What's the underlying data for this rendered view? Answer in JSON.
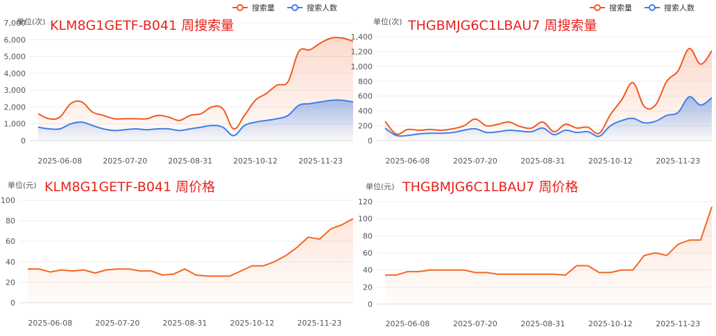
{
  "theme": {
    "search_color": "#f2571b",
    "people_color": "#3d7fe8",
    "price_color": "#f4661f",
    "title_color": "#e8211b",
    "axis_text_color": "#555555",
    "grid_color": "#eeeeee"
  },
  "chart_data": [
    {
      "type": "area",
      "title": "KLM8G1GETF-B041 周搜索量",
      "ylabel": "单位(次)",
      "ylim": [
        0,
        7000
      ],
      "yticks": [
        0,
        1000,
        2000,
        3000,
        4000,
        5000,
        6000,
        7000
      ],
      "ytick_labels": [
        "0",
        "1,000",
        "2,000",
        "3,000",
        "4,000",
        "5,000",
        "6,000",
        "7,000"
      ],
      "x": [
        "2025-05-25",
        "2025-06-01",
        "2025-06-08",
        "2025-06-15",
        "2025-06-22",
        "2025-06-29",
        "2025-07-06",
        "2025-07-13",
        "2025-07-20",
        "2025-07-27",
        "2025-08-03",
        "2025-08-10",
        "2025-08-17",
        "2025-08-24",
        "2025-08-31",
        "2025-09-07",
        "2025-09-14",
        "2025-09-21",
        "2025-09-28",
        "2025-10-05",
        "2025-10-12",
        "2025-10-19",
        "2025-10-26",
        "2025-11-02",
        "2025-11-09",
        "2025-11-16",
        "2025-11-23",
        "2025-11-30",
        "2025-12-07",
        "2025-12-14"
      ],
      "xtick_labels": [
        "2025-06-08",
        "2025-07-20",
        "2025-08-31",
        "2025-10-12",
        "2025-11-23"
      ],
      "legend": [
        "搜索量",
        "搜索人数"
      ],
      "legend_position": "top-right",
      "series": [
        {
          "name": "搜索量",
          "values": [
            1600,
            1300,
            1400,
            2200,
            2300,
            1700,
            1500,
            1300,
            1300,
            1300,
            1300,
            1500,
            1400,
            1200,
            1500,
            1600,
            2000,
            1900,
            700,
            1500,
            2400,
            2800,
            3300,
            3500,
            5300,
            5400,
            5800,
            6100,
            6100,
            5900
          ]
        },
        {
          "name": "搜索人数",
          "values": [
            800,
            700,
            700,
            1000,
            1100,
            900,
            700,
            600,
            650,
            700,
            650,
            700,
            700,
            600,
            700,
            800,
            900,
            800,
            300,
            900,
            1100,
            1200,
            1300,
            1500,
            2100,
            2200,
            2300,
            2400,
            2400,
            2300
          ]
        }
      ]
    },
    {
      "type": "area",
      "title": "THGBMJG6C1LBAU7 周搜索量",
      "ylabel": "单位(次)",
      "ylim": [
        0,
        1400
      ],
      "yticks": [
        0,
        200,
        400,
        600,
        800,
        1000,
        1200,
        1400
      ],
      "ytick_labels": [
        "0",
        "200",
        "400",
        "600",
        "800",
        "1,000",
        "1,200",
        "1,400"
      ],
      "x": [
        "2025-05-25",
        "2025-06-01",
        "2025-06-08",
        "2025-06-15",
        "2025-06-22",
        "2025-06-29",
        "2025-07-06",
        "2025-07-13",
        "2025-07-20",
        "2025-07-27",
        "2025-08-03",
        "2025-08-10",
        "2025-08-17",
        "2025-08-24",
        "2025-08-31",
        "2025-09-07",
        "2025-09-14",
        "2025-09-21",
        "2025-09-28",
        "2025-10-05",
        "2025-10-12",
        "2025-10-19",
        "2025-10-26",
        "2025-11-02",
        "2025-11-09",
        "2025-11-16",
        "2025-11-23",
        "2025-11-30",
        "2025-12-07",
        "2025-12-14"
      ],
      "xtick_labels": [
        "2025-06-08",
        "2025-07-20",
        "2025-08-31",
        "2025-10-12",
        "2025-11-23"
      ],
      "legend": [
        "搜索量",
        "搜索人数"
      ],
      "legend_position": "top-right",
      "series": [
        {
          "name": "搜索量",
          "values": [
            260,
            90,
            150,
            140,
            150,
            140,
            160,
            200,
            290,
            200,
            220,
            250,
            190,
            170,
            250,
            120,
            220,
            170,
            180,
            100,
            350,
            550,
            780,
            460,
            480,
            800,
            940,
            1240,
            1030,
            1210
          ]
        },
        {
          "name": "搜索人数",
          "values": [
            170,
            70,
            70,
            90,
            100,
            100,
            110,
            140,
            160,
            110,
            120,
            140,
            130,
            120,
            170,
            80,
            140,
            110,
            120,
            60,
            200,
            270,
            300,
            240,
            260,
            340,
            380,
            590,
            480,
            580
          ]
        }
      ]
    },
    {
      "type": "area",
      "title": "KLM8G1GETF-B041 周价格",
      "ylabel": "单位(元)",
      "ylim": [
        0,
        100
      ],
      "yticks": [
        0,
        20,
        40,
        60,
        80,
        100
      ],
      "ytick_labels": [
        "0",
        "20",
        "40",
        "60",
        "80",
        "100"
      ],
      "x": [
        "2025-05-25",
        "2025-06-01",
        "2025-06-08",
        "2025-06-15",
        "2025-06-22",
        "2025-06-29",
        "2025-07-06",
        "2025-07-13",
        "2025-07-20",
        "2025-07-27",
        "2025-08-03",
        "2025-08-10",
        "2025-08-17",
        "2025-08-24",
        "2025-08-31",
        "2025-09-07",
        "2025-09-14",
        "2025-09-21",
        "2025-09-28",
        "2025-10-05",
        "2025-10-12",
        "2025-10-19",
        "2025-10-26",
        "2025-11-02",
        "2025-11-09",
        "2025-11-16",
        "2025-11-23",
        "2025-11-30",
        "2025-12-07",
        "2025-12-14"
      ],
      "xtick_labels": [
        "2025-06-08",
        "2025-07-20",
        "2025-08-31",
        "2025-10-12",
        "2025-11-23"
      ],
      "series": [
        {
          "name": "",
          "values": [
            33,
            33,
            30,
            32,
            31,
            32,
            29,
            32,
            33,
            33,
            31,
            31,
            27,
            28,
            33,
            27,
            26,
            26,
            26,
            31,
            36,
            36,
            40,
            46,
            54,
            64,
            62,
            72,
            76,
            82
          ]
        }
      ]
    },
    {
      "type": "area",
      "title": "THGBMJG6C1LBAU7 周价格",
      "ylabel": "单位(元)",
      "ylim": [
        0,
        120
      ],
      "yticks": [
        0,
        20,
        40,
        60,
        80,
        100,
        120
      ],
      "ytick_labels": [
        "0",
        "20",
        "40",
        "60",
        "80",
        "100",
        "120"
      ],
      "x": [
        "2025-05-25",
        "2025-06-01",
        "2025-06-08",
        "2025-06-15",
        "2025-06-22",
        "2025-06-29",
        "2025-07-06",
        "2025-07-13",
        "2025-07-20",
        "2025-07-27",
        "2025-08-03",
        "2025-08-10",
        "2025-08-17",
        "2025-08-24",
        "2025-08-31",
        "2025-09-07",
        "2025-09-14",
        "2025-09-21",
        "2025-09-28",
        "2025-10-05",
        "2025-10-12",
        "2025-10-19",
        "2025-10-26",
        "2025-11-02",
        "2025-11-09",
        "2025-11-16",
        "2025-11-23",
        "2025-11-30",
        "2025-12-07",
        "2025-12-14"
      ],
      "xtick_labels": [
        "2025-06-08",
        "2025-07-20",
        "2025-08-31",
        "2025-10-12",
        "2025-11-23"
      ],
      "series": [
        {
          "name": "",
          "values": [
            34,
            34,
            38,
            38,
            40,
            40,
            40,
            40,
            37,
            37,
            35,
            35,
            35,
            35,
            35,
            35,
            34,
            45,
            45,
            37,
            37,
            40,
            40,
            57,
            60,
            57,
            70,
            75,
            75,
            114
          ]
        }
      ]
    }
  ]
}
